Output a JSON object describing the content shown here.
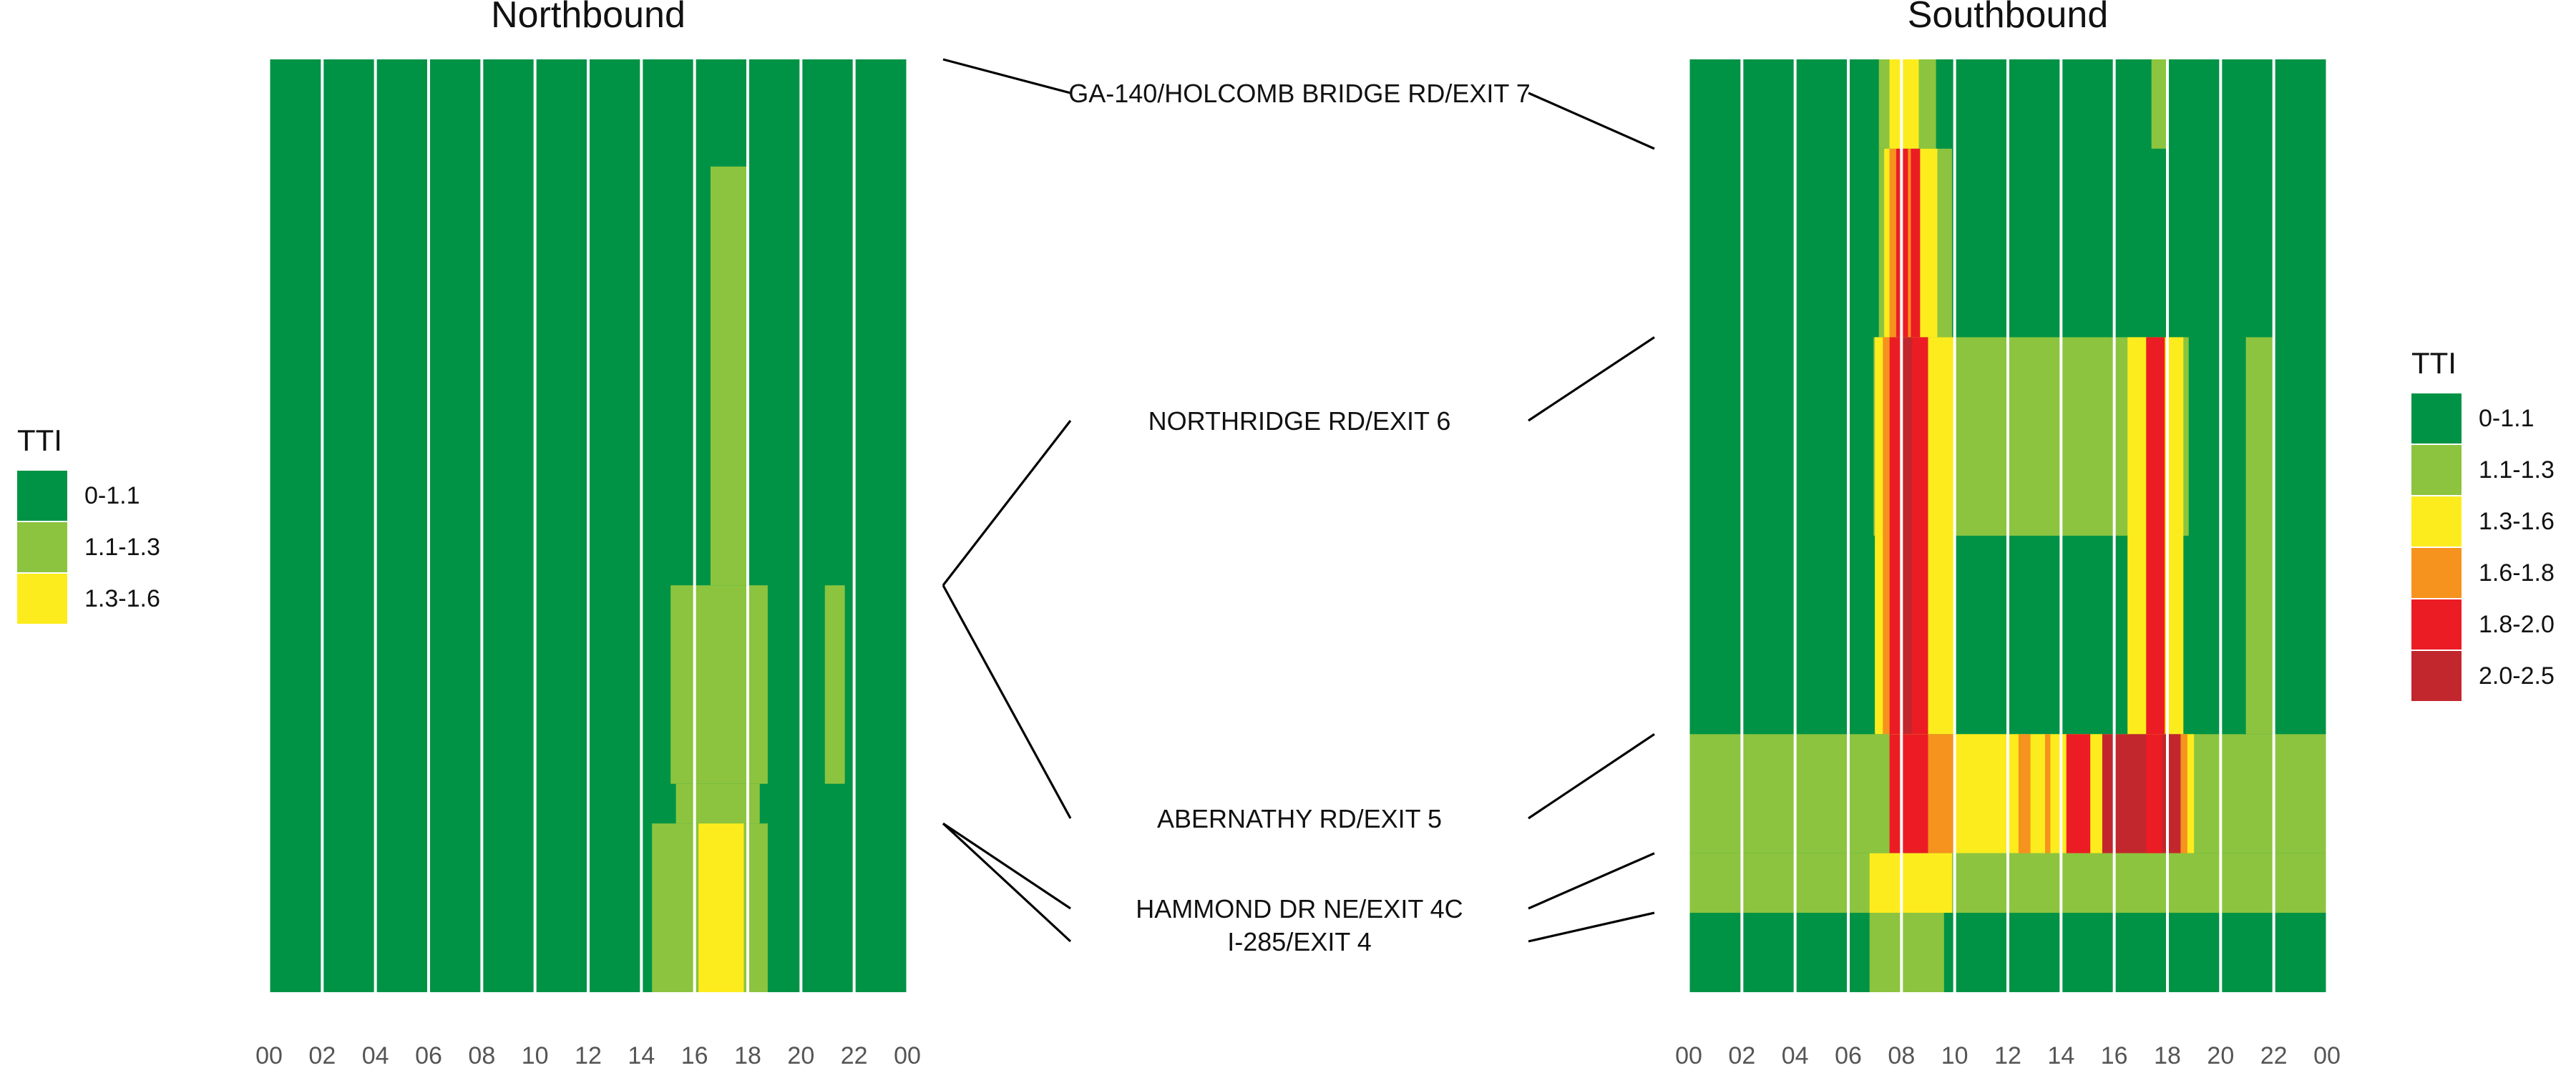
{
  "chart_data": [
    {
      "type": "heatmap",
      "title": "Northbound",
      "x_tick_labels": [
        "00",
        "02",
        "04",
        "06",
        "08",
        "10",
        "12",
        "14",
        "16",
        "18",
        "20",
        "22",
        "00"
      ],
      "x_range_hours": [
        0,
        24
      ],
      "grid": false,
      "legend": {
        "position": "left",
        "title": "TTI",
        "entries": [
          {
            "label": "0-1.1",
            "color": "#009345"
          },
          {
            "label": "1.1-1.3",
            "color": "#8cc43f"
          },
          {
            "label": "1.3-1.6",
            "color": "#fdec1d"
          }
        ]
      },
      "base_bin": "0-1.1",
      "cells": [
        {
          "start_hour": 16.6,
          "end_hour": 18.0,
          "from_mile": 7.46,
          "to_mile": 5.35,
          "bin": "1.1-1.3"
        },
        {
          "start_hour": 15.1,
          "end_hour": 18.75,
          "from_mile": 5.35,
          "to_mile": 4.35,
          "bin": "1.1-1.3"
        },
        {
          "start_hour": 20.9,
          "end_hour": 21.65,
          "from_mile": 5.35,
          "to_mile": 4.35,
          "bin": "1.1-1.3"
        },
        {
          "start_hour": 15.3,
          "end_hour": 18.45,
          "from_mile": 4.35,
          "to_mile": 4.15,
          "bin": "1.1-1.3"
        },
        {
          "start_hour": 14.4,
          "end_hour": 18.75,
          "from_mile": 4.15,
          "to_mile": 3.3,
          "bin": "1.1-1.3"
        },
        {
          "start_hour": 16.15,
          "end_hour": 17.85,
          "from_mile": 4.15,
          "to_mile": 3.3,
          "bin": "1.3-1.6"
        }
      ]
    },
    {
      "type": "heatmap",
      "title": "Southbound",
      "x_tick_labels": [
        "00",
        "02",
        "04",
        "06",
        "08",
        "10",
        "12",
        "14",
        "16",
        "18",
        "20",
        "22",
        "00"
      ],
      "x_range_hours": [
        0,
        24
      ],
      "grid": false,
      "legend": {
        "position": "right",
        "title": "TTI",
        "entries": [
          {
            "label": "0-1.1",
            "color": "#009345"
          },
          {
            "label": "1.1-1.3",
            "color": "#8cc43f"
          },
          {
            "label": "1.3-1.6",
            "color": "#fdec1d"
          },
          {
            "label": "1.6-1.8",
            "color": "#f6921e"
          },
          {
            "label": "1.8-2.0",
            "color": "#ec1c24"
          },
          {
            "label": "2.0-2.5",
            "color": "#c1272d"
          }
        ]
      },
      "base_bin": "0-1.1",
      "cells": [
        {
          "start_hour": 7.15,
          "end_hour": 9.3,
          "from_mile": 8.0,
          "to_mile": 7.55,
          "bin": "1.1-1.3"
        },
        {
          "start_hour": 7.55,
          "end_hour": 8.65,
          "from_mile": 8.0,
          "to_mile": 7.55,
          "bin": "1.3-1.6"
        },
        {
          "start_hour": 17.4,
          "end_hour": 17.95,
          "from_mile": 8.0,
          "to_mile": 7.55,
          "bin": "1.1-1.3"
        },
        {
          "start_hour": 7.15,
          "end_hour": 9.9,
          "from_mile": 7.55,
          "to_mile": 6.6,
          "bin": "1.1-1.3"
        },
        {
          "start_hour": 7.35,
          "end_hour": 9.35,
          "from_mile": 7.55,
          "to_mile": 6.6,
          "bin": "1.3-1.6"
        },
        {
          "start_hour": 7.55,
          "end_hour": 7.8,
          "from_mile": 7.55,
          "to_mile": 6.6,
          "bin": "1.6-1.8"
        },
        {
          "start_hour": 7.8,
          "end_hour": 8.25,
          "from_mile": 7.55,
          "to_mile": 6.6,
          "bin": "1.8-2.0"
        },
        {
          "start_hour": 8.25,
          "end_hour": 8.35,
          "from_mile": 7.55,
          "to_mile": 6.6,
          "bin": "1.6-1.8"
        },
        {
          "start_hour": 8.35,
          "end_hour": 8.7,
          "from_mile": 7.55,
          "to_mile": 6.6,
          "bin": "1.8-2.0"
        },
        {
          "start_hour": 6.95,
          "end_hour": 18.8,
          "from_mile": 6.6,
          "to_mile": 5.6,
          "bin": "1.1-1.3"
        },
        {
          "start_hour": 20.95,
          "end_hour": 21.95,
          "from_mile": 6.6,
          "to_mile": 4.6,
          "bin": "1.1-1.3"
        },
        {
          "start_hour": 7.0,
          "end_hour": 10.0,
          "from_mile": 6.6,
          "to_mile": 4.6,
          "bin": "1.3-1.6"
        },
        {
          "start_hour": 7.3,
          "end_hour": 7.55,
          "from_mile": 6.6,
          "to_mile": 4.6,
          "bin": "1.6-1.8"
        },
        {
          "start_hour": 7.55,
          "end_hour": 9.0,
          "from_mile": 6.6,
          "to_mile": 4.6,
          "bin": "1.8-2.0"
        },
        {
          "start_hour": 8.0,
          "end_hour": 8.4,
          "from_mile": 6.6,
          "to_mile": 4.6,
          "bin": "2.0-2.5"
        },
        {
          "start_hour": 16.5,
          "end_hour": 18.6,
          "from_mile": 6.6,
          "to_mile": 4.6,
          "bin": "1.3-1.6"
        },
        {
          "start_hour": 17.2,
          "end_hour": 17.9,
          "from_mile": 6.6,
          "to_mile": 4.6,
          "bin": "1.8-2.0"
        },
        {
          "start_hour": 0.0,
          "end_hour": 24.0,
          "from_mile": 4.6,
          "to_mile": 4.0,
          "bin": "1.1-1.3"
        },
        {
          "start_hour": 7.6,
          "end_hour": 19.0,
          "from_mile": 4.6,
          "to_mile": 4.0,
          "bin": "1.3-1.6"
        },
        {
          "start_hour": 7.55,
          "end_hour": 9.0,
          "from_mile": 4.6,
          "to_mile": 4.0,
          "bin": "1.8-2.0"
        },
        {
          "start_hour": 9.0,
          "end_hour": 10.0,
          "from_mile": 4.6,
          "to_mile": 4.0,
          "bin": "1.6-1.8"
        },
        {
          "start_hour": 12.4,
          "end_hour": 12.85,
          "from_mile": 4.6,
          "to_mile": 4.0,
          "bin": "1.6-1.8"
        },
        {
          "start_hour": 13.4,
          "end_hour": 13.6,
          "from_mile": 4.6,
          "to_mile": 4.0,
          "bin": "1.6-1.8"
        },
        {
          "start_hour": 14.2,
          "end_hour": 15.1,
          "from_mile": 4.6,
          "to_mile": 4.0,
          "bin": "1.8-2.0"
        },
        {
          "start_hour": 15.55,
          "end_hour": 18.5,
          "from_mile": 4.6,
          "to_mile": 4.0,
          "bin": "2.0-2.5"
        },
        {
          "start_hour": 17.2,
          "end_hour": 17.8,
          "from_mile": 4.6,
          "to_mile": 4.0,
          "bin": "1.8-2.0"
        },
        {
          "start_hour": 18.5,
          "end_hour": 18.75,
          "from_mile": 4.6,
          "to_mile": 4.0,
          "bin": "1.6-1.8"
        },
        {
          "start_hour": 0.0,
          "end_hour": 24.0,
          "from_mile": 4.0,
          "to_mile": 3.7,
          "bin": "1.1-1.3"
        },
        {
          "start_hour": 6.8,
          "end_hour": 9.6,
          "from_mile": 3.7,
          "to_mile": 3.3,
          "bin": "1.1-1.3"
        },
        {
          "start_hour": 6.8,
          "end_hour": 9.9,
          "from_mile": 4.0,
          "to_mile": 3.7,
          "bin": "1.3-1.6"
        }
      ]
    }
  ],
  "axis": {
    "mile_top": 8.0,
    "mile_bottom": 3.3
  },
  "interchanges": [
    {
      "label": "GA-140/HOLCOMB BRIDGE RD/EXIT 7",
      "nb_mile": 8.0,
      "sb_mile": 7.55
    },
    {
      "label": "NORTHRIDGE RD/EXIT 6",
      "nb_mile": 5.35,
      "sb_mile": 6.6
    },
    {
      "label": "ABERNATHY RD/EXIT 5",
      "nb_mile": 5.35,
      "sb_mile": 4.6
    },
    {
      "label": "HAMMOND DR NE/EXIT 4C",
      "nb_mile": 4.15,
      "sb_mile": 4.0
    },
    {
      "label": "I-285/EXIT 4",
      "nb_mile": 4.15,
      "sb_mile": 3.7
    }
  ]
}
